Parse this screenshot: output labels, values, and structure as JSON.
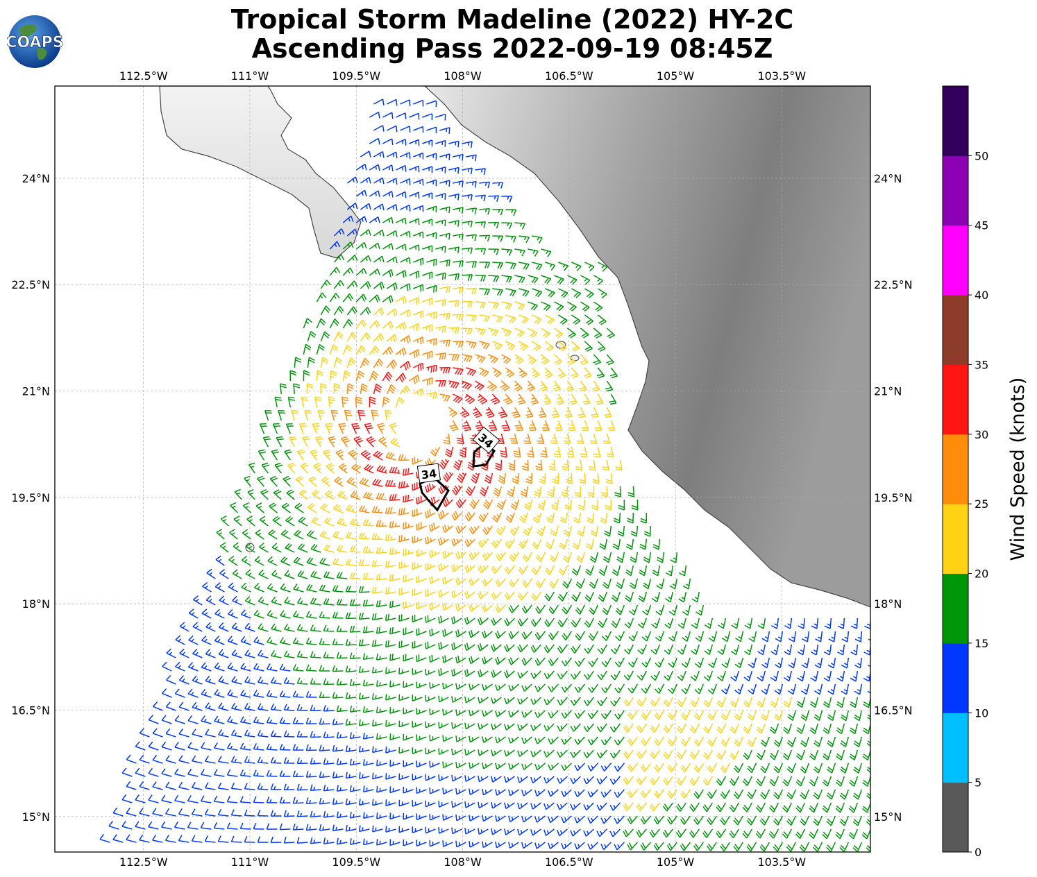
{
  "title": {
    "line1": "Tropical Storm Madeline (2022) HY-2C",
    "line2": "Ascending Pass 2022-09-19 08:45Z"
  },
  "logo": {
    "text": "COAPS"
  },
  "axes": {
    "lon_labels": [
      "112.5°W",
      "111°W",
      "109.5°W",
      "108°W",
      "106.5°W",
      "105°W",
      "103.5°W"
    ],
    "lon_values": [
      -112.5,
      -111,
      -109.5,
      -108,
      -106.5,
      -105,
      -103.5
    ],
    "lat_labels": [
      "24°N",
      "22.5°N",
      "21°N",
      "19.5°N",
      "18°N",
      "16.5°N",
      "15°N"
    ],
    "lat_values": [
      24,
      22.5,
      21,
      19.5,
      18,
      16.5,
      15
    ],
    "lon_range": [
      -113.75,
      -102.25
    ],
    "lat_range": [
      14.5,
      25.3
    ],
    "grid": true
  },
  "storm": {
    "center_lon": -108.6,
    "center_lat": 20.5,
    "contour_label": "34",
    "contour_labels": [
      "34",
      "34"
    ]
  },
  "colorbar": {
    "label": "Wind Speed (knots)",
    "ticks": [
      "0",
      "5",
      "10",
      "15",
      "20",
      "25",
      "30",
      "35",
      "40",
      "45",
      "50"
    ],
    "tick_values": [
      0,
      5,
      10,
      15,
      20,
      25,
      30,
      35,
      40,
      45,
      50
    ],
    "max": 55,
    "colors": [
      "#595959",
      "#00bfff",
      "#0038ff",
      "#00960a",
      "#ffd214",
      "#ff8c0a",
      "#ff1414",
      "#8c3c28",
      "#ff00ff",
      "#8c00b4",
      "#32005a"
    ]
  },
  "chart_data": {
    "type": "wind_barbs",
    "units": "knots",
    "center": {
      "lon": -108.6,
      "lat": 20.5
    },
    "speed_bins": [
      {
        "range": [
          0,
          5
        ],
        "color": "#595959"
      },
      {
        "range": [
          5,
          10
        ],
        "color": "#00bfff"
      },
      {
        "range": [
          10,
          15
        ],
        "color": "#0038ff"
      },
      {
        "range": [
          15,
          20
        ],
        "color": "#00960a"
      },
      {
        "range": [
          20,
          25
        ],
        "color": "#ffd214"
      },
      {
        "range": [
          25,
          30
        ],
        "color": "#ff8c0a"
      },
      {
        "range": [
          30,
          35
        ],
        "color": "#ff1414"
      }
    ],
    "max_observed_knots": 35,
    "radius_of_max_wind_deg": 0.8
  }
}
